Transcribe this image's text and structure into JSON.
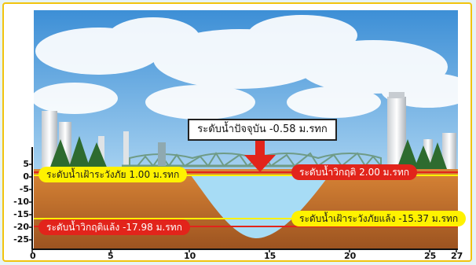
{
  "current_level_label": "ระดับน้ำปัจจุบัน -0.58 ม.รทก",
  "levels": {
    "flood_watch": "ระดับน้ำเฝ้าระวังภัย 1.00 ม.รทก",
    "flood_critical": "ระดับน้ำวิกฤติ 2.00 ม.รทก",
    "drought_critical": "ระดับน้ำวิกฤติแล้ง -17.98 ม.รทก",
    "drought_watch": "ระดับน้ำเฝ้าระวังภัยแล้ง -15.37 ม.รทก"
  },
  "y_ticks": [
    "5",
    "0",
    "-5",
    "-10",
    "-15",
    "-20",
    "-25"
  ],
  "x_ticks": [
    "0",
    "5",
    "10",
    "15",
    "20",
    "25",
    "27"
  ],
  "chart_data": {
    "type": "area",
    "y_range": [
      -25,
      5
    ],
    "x_range": [
      0,
      27
    ],
    "current_water_level": -0.58,
    "thresholds": [
      {
        "label": "ระดับน้ำเฝ้าระวังภัย 1.00 ม.รทก",
        "value": 1.0,
        "color": "#fff200"
      },
      {
        "label": "ระดับน้ำวิกฤติ 2.00 ม.รทก",
        "value": 2.0,
        "color": "#e2241b"
      },
      {
        "label": "ระดับน้ำวิกฤติแล้ง -17.98 ม.รทก",
        "value": -17.98,
        "color": "#e2241b"
      },
      {
        "label": "ระดับน้ำเฝ้าระวังภัยแล้ง -15.37 ม.รทก",
        "value": -15.37,
        "color": "#fff200"
      }
    ]
  },
  "colors": {
    "soil": "#c9712a",
    "water": "#a7dcf5",
    "sky": "#5aa9e6",
    "alert_arrow": "#e2241b"
  }
}
